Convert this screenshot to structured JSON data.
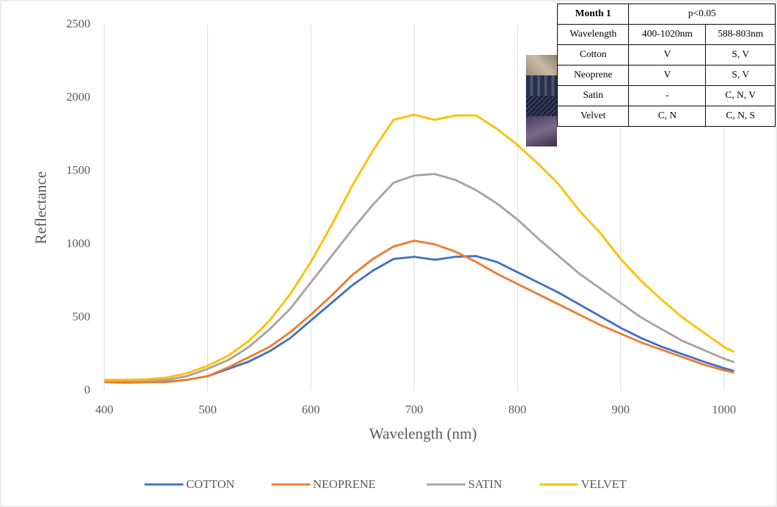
{
  "chart_data": {
    "type": "line",
    "x_label": "Wavelength (nm)",
    "y_label": "Reflectance",
    "x": [
      400,
      420,
      440,
      460,
      480,
      500,
      520,
      540,
      560,
      580,
      600,
      620,
      640,
      660,
      680,
      700,
      720,
      740,
      760,
      780,
      800,
      820,
      840,
      860,
      880,
      900,
      920,
      940,
      960,
      980,
      1000,
      1010
    ],
    "series": [
      {
        "name": "COTTON",
        "color": "#4472c4",
        "values": [
          65,
          60,
          60,
          62,
          75,
          100,
          150,
          200,
          270,
          360,
          480,
          600,
          720,
          820,
          900,
          915,
          895,
          915,
          920,
          880,
          810,
          740,
          670,
          590,
          510,
          430,
          360,
          300,
          250,
          200,
          155,
          135
        ]
      },
      {
        "name": "NEOPRENE",
        "color": "#ed7d31",
        "values": [
          60,
          55,
          58,
          60,
          75,
          100,
          160,
          230,
          300,
          400,
          520,
          650,
          790,
          900,
          985,
          1025,
          1000,
          950,
          880,
          800,
          730,
          660,
          590,
          520,
          450,
          390,
          330,
          280,
          230,
          180,
          140,
          125
        ]
      },
      {
        "name": "SATIN",
        "color": "#a5a5a5",
        "values": [
          70,
          70,
          70,
          75,
          100,
          150,
          210,
          300,
          420,
          560,
          740,
          920,
          1100,
          1270,
          1420,
          1470,
          1480,
          1440,
          1370,
          1280,
          1170,
          1040,
          920,
          800,
          700,
          600,
          500,
          420,
          340,
          280,
          220,
          195
        ]
      },
      {
        "name": "VELVET",
        "color": "#ffc000",
        "values": [
          75,
          75,
          78,
          90,
          120,
          170,
          240,
          340,
          480,
          660,
          880,
          1130,
          1400,
          1640,
          1850,
          1885,
          1850,
          1880,
          1880,
          1790,
          1680,
          1550,
          1410,
          1230,
          1080,
          900,
          750,
          620,
          500,
          400,
          300,
          265
        ]
      }
    ],
    "xlim": [
      400,
      1020
    ],
    "xticks": [
      400,
      500,
      600,
      700,
      800,
      900,
      1000
    ],
    "ylim": [
      0,
      2500
    ],
    "yticks": [
      0,
      500,
      1000,
      1500,
      2000,
      2500
    ],
    "grid": "x",
    "legend": "bottom"
  },
  "table": {
    "header": [
      "Month 1",
      "p<0.05"
    ],
    "rows": [
      [
        "Wavelength",
        "400-1020nm",
        "588-803nm"
      ],
      [
        "Cotton",
        "V",
        "S, V"
      ],
      [
        "Neoprene",
        "V",
        "S, V"
      ],
      [
        "Satin",
        "-",
        "C, N, V"
      ],
      [
        "Velvet",
        "C, N",
        "C, N, S"
      ]
    ]
  }
}
